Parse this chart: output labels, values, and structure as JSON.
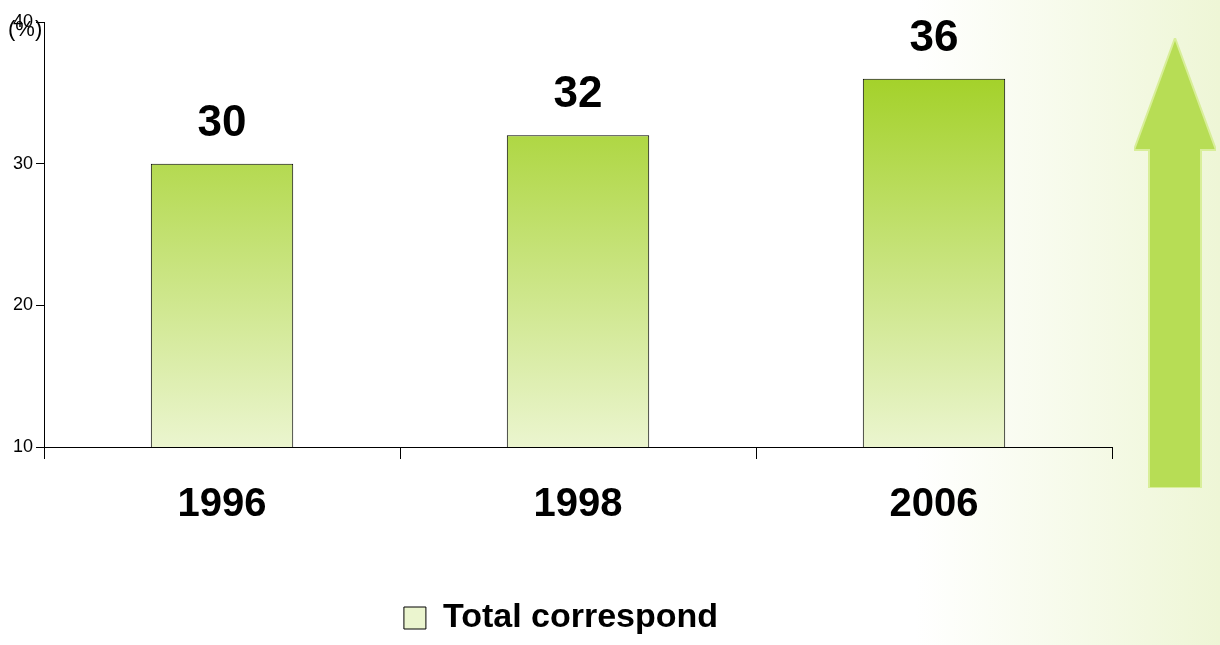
{
  "chart_data": {
    "type": "bar",
    "ylabel": "(%)",
    "categories": [
      "1996",
      "1998",
      "2006"
    ],
    "series": [
      {
        "name": "Total correspond",
        "color": "#99cc11",
        "values": [
          30,
          32,
          36
        ]
      }
    ],
    "ylim": [
      10,
      40
    ],
    "yticks": [
      10,
      20,
      30,
      40
    ],
    "grid": false,
    "legend": "bottom",
    "data_labels": true
  }
}
